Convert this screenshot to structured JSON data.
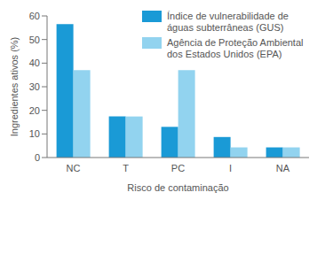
{
  "chart_data": {
    "type": "bar",
    "x_label": "Risco de contaminação",
    "y_label": "Ingredientes ativos (%)",
    "categories": [
      "NC",
      "T",
      "PC",
      "I",
      "NA"
    ],
    "series": [
      {
        "name": "Índice de vulnerabilidade de águas subterrâneas (GUS)",
        "color": "#1a9ad6",
        "values": [
          56.5,
          17.4,
          13,
          8.7,
          4.3
        ]
      },
      {
        "name": "Agência de Proteção Ambiental dos Estados Unidos (EPA)",
        "color": "#92d3ef",
        "values": [
          37,
          17.4,
          37,
          4.3,
          4.3
        ]
      }
    ],
    "ylim": [
      0,
      60
    ],
    "yticks": [
      0,
      10,
      20,
      30,
      40,
      50,
      60
    ],
    "grid": false,
    "legend": "upper right"
  }
}
